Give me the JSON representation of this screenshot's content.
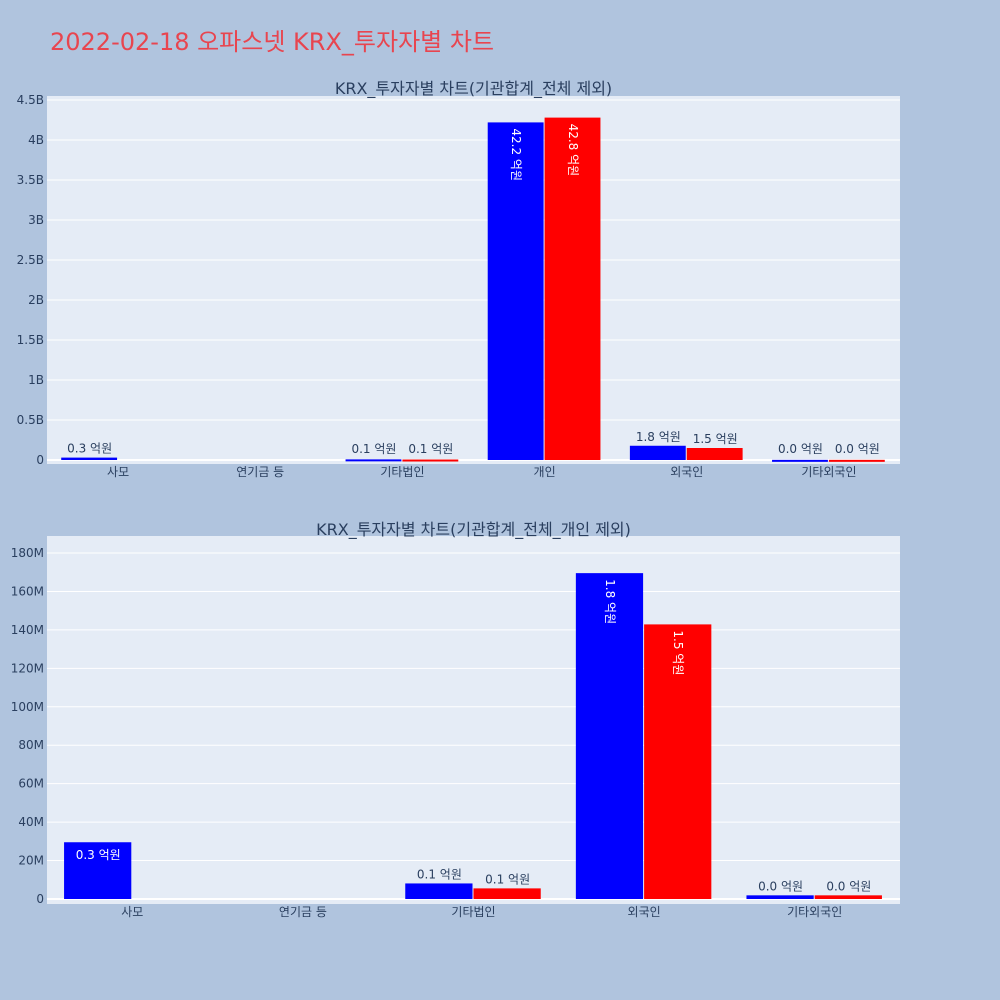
{
  "title": "2022-02-18 오파스넷 KRX_투자자별 차트",
  "colors": {
    "series_a": "#0000FF",
    "series_b": "#FF0000",
    "plot_bg": "#E5ECF6",
    "page_bg": "#B0C4DE",
    "title": "#E8454F"
  },
  "chart_data": [
    {
      "type": "bar",
      "title": "KRX_투자자별 차트(기관합계_전체 제외)",
      "categories": [
        "사모",
        "연기금 등",
        "기타법인",
        "개인",
        "외국인",
        "기타외국인"
      ],
      "yticks": [
        "0",
        "0.5B",
        "1B",
        "1.5B",
        "2B",
        "2.5B",
        "3B",
        "3.5B",
        "4B",
        "4.5B"
      ],
      "ylim": [
        0,
        4500000000
      ],
      "series": [
        {
          "values": [
            30000000,
            0,
            8000000,
            4220000000,
            178000000,
            2000000
          ],
          "labels": [
            "0.3 억원",
            "",
            "0.1 억원",
            "42.2 억원",
            "1.8 억원",
            "0.0 억원"
          ]
        },
        {
          "values": [
            0,
            0,
            6000000,
            4280000000,
            150000000,
            2000000
          ],
          "labels": [
            "",
            "",
            "0.1 억원",
            "42.8 억원",
            "1.5 억원",
            "0.0 억원"
          ]
        }
      ]
    },
    {
      "type": "bar",
      "title": "KRX_투자자별 차트(기관합계_전체_개인 제외)",
      "categories": [
        "사모",
        "연기금 등",
        "기타법인",
        "외국인",
        "기타외국인"
      ],
      "yticks": [
        "0",
        "20M",
        "40M",
        "60M",
        "80M",
        "100M",
        "120M",
        "140M",
        "160M",
        "180M"
      ],
      "ylim": [
        0,
        189000000
      ],
      "series": [
        {
          "values": [
            31000000,
            0,
            8500000,
            178000000,
            2000000
          ],
          "labels": [
            "0.3 억원",
            "",
            "0.1 억원",
            "1.8 억원",
            "0.0 억원"
          ]
        },
        {
          "values": [
            0,
            0,
            5800000,
            150000000,
            2000000
          ],
          "labels": [
            "",
            "",
            "0.1 억원",
            "1.5 억원",
            "0.0 억원"
          ]
        }
      ]
    }
  ]
}
